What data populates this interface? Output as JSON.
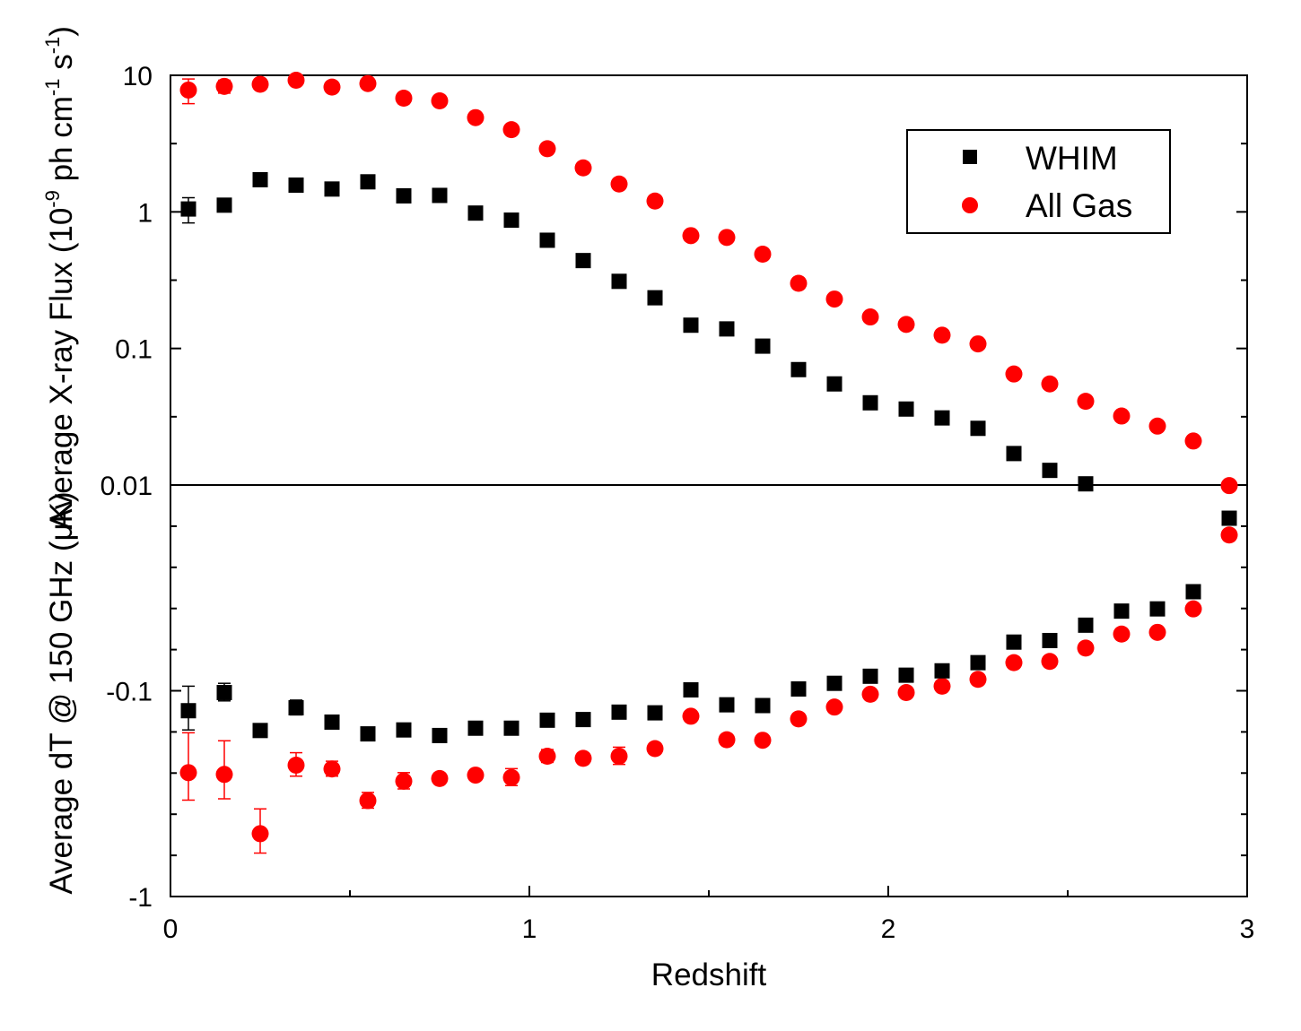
{
  "chart_data": {
    "type": "scatter",
    "xlabel": "Redshift",
    "xlim": [
      0,
      3
    ],
    "xticks": [
      "0",
      "1",
      "2",
      "3"
    ],
    "legend_position": "top-right",
    "x": [
      0.05,
      0.15,
      0.25,
      0.35,
      0.45,
      0.55,
      0.65,
      0.75,
      0.85,
      0.95,
      1.05,
      1.15,
      1.25,
      1.35,
      1.45,
      1.55,
      1.65,
      1.75,
      1.85,
      1.95,
      2.05,
      2.15,
      2.25,
      2.35,
      2.45,
      2.55,
      2.65,
      2.75,
      2.85,
      2.95
    ],
    "panels": [
      {
        "name": "top",
        "ylabel_parts": [
          "Average X-ray Flux (10",
          "-9",
          " ph cm",
          "-1",
          " s",
          "-1",
          ")"
        ],
        "yscale": "log",
        "ylim": [
          0.01,
          10
        ],
        "yticks": [
          "0.01",
          "0.1",
          "1",
          "10"
        ],
        "series": [
          {
            "name": "WHIM",
            "color": "#000000",
            "marker": "square",
            "values": [
              1.05,
              1.12,
              1.72,
              1.57,
              1.47,
              1.66,
              1.31,
              1.32,
              0.98,
              0.87,
              0.62,
              0.44,
              0.31,
              0.235,
              0.148,
              0.139,
              0.104,
              0.07,
              0.055,
              0.04,
              0.036,
              0.031,
              0.026,
              0.017,
              0.0128,
              0.0102,
              null,
              null,
              null,
              null
            ],
            "errors": [
              0.22,
              0.08,
              0.07,
              0.05,
              0.06,
              0.06,
              0.05,
              0.05,
              0.04,
              0.03,
              0.02,
              0.02,
              0.01,
              0.008,
              0.005,
              0.005,
              0.003,
              0.002,
              0.002,
              0.001,
              0.001,
              0.001,
              0.001,
              0.0006,
              0.0005,
              0.0004,
              null,
              null,
              null,
              null
            ]
          },
          {
            "name": "All Gas",
            "color": "#ff0000",
            "marker": "circle",
            "values": [
              7.8,
              8.3,
              8.6,
              9.2,
              8.2,
              8.7,
              6.8,
              6.5,
              4.9,
              4.0,
              2.9,
              2.1,
              1.6,
              1.2,
              0.67,
              0.65,
              0.49,
              0.3,
              0.23,
              0.17,
              0.15,
              0.125,
              0.108,
              0.065,
              0.055,
              0.041,
              0.032,
              0.027,
              0.021,
              0.0099
            ],
            "errors": [
              1.6,
              0.9,
              0.6,
              0.5,
              0.5,
              0.5,
              0.6,
              0.4,
              0.3,
              0.2,
              0.15,
              0.1,
              0.08,
              0.05,
              0.03,
              0.03,
              0.02,
              0.012,
              0.01,
              0.007,
              0.006,
              0.005,
              0.004,
              0.003,
              0.002,
              0.002,
              0.0015,
              0.001,
              0.001,
              0.0005
            ]
          }
        ]
      },
      {
        "name": "bottom",
        "ylabel": "Average dT @ 150 GHz (μK)",
        "yscale": "log-negative",
        "ylim": [
          -0.01,
          -1
        ],
        "yticks": [
          "-0.1",
          "-1"
        ],
        "series": [
          {
            "name": "WHIM",
            "color": "#000000",
            "marker": "square",
            "values": [
              -0.125,
              -0.102,
              -0.156,
              -0.121,
              -0.142,
              -0.162,
              -0.155,
              -0.165,
              -0.152,
              -0.152,
              -0.139,
              -0.138,
              -0.127,
              -0.128,
              -0.099,
              -0.117,
              -0.118,
              -0.098,
              -0.092,
              -0.085,
              -0.084,
              -0.08,
              -0.073,
              -0.058,
              -0.057,
              -0.048,
              -0.041,
              -0.04,
              -0.033,
              -0.0145
            ],
            "errors": [
              0.03,
              0.01,
              0.01,
              0.01,
              0.008,
              0.008,
              0.01,
              0.006,
              0.008,
              0.008,
              0.006,
              0.006,
              0.005,
              0.005,
              0.004,
              0.004,
              0.004,
              0.004,
              0.003,
              0.003,
              0.003,
              0.003,
              0.002,
              0.002,
              0.002,
              0.002,
              0.001,
              0.001,
              0.001,
              0.0007
            ]
          },
          {
            "name": "All Gas",
            "color": "#ff0000",
            "marker": "circle",
            "values": [
              -0.25,
              -0.255,
              -0.495,
              -0.23,
              -0.24,
              -0.342,
              -0.275,
              -0.267,
              -0.257,
              -0.264,
              -0.208,
              -0.213,
              -0.208,
              -0.191,
              -0.133,
              -0.173,
              -0.174,
              -0.137,
              -0.12,
              -0.104,
              -0.102,
              -0.095,
              -0.088,
              -0.073,
              -0.072,
              -0.062,
              -0.053,
              -0.052,
              -0.04,
              -0.0175
            ],
            "errors": [
              0.09,
              0.08,
              0.12,
              0.03,
              0.02,
              0.03,
              0.025,
              0.015,
              0.015,
              0.025,
              0.015,
              0.01,
              0.02,
              0.01,
              0.005,
              0.005,
              0.007,
              0.008,
              0.005,
              0.004,
              0.004,
              0.004,
              0.003,
              0.003,
              0.003,
              0.003,
              0.002,
              0.002,
              0.0015,
              0.001
            ]
          }
        ]
      }
    ],
    "legend": [
      {
        "label": "WHIM",
        "color": "#000000",
        "marker": "square"
      },
      {
        "label": "All Gas",
        "color": "#ff0000",
        "marker": "circle"
      }
    ]
  }
}
